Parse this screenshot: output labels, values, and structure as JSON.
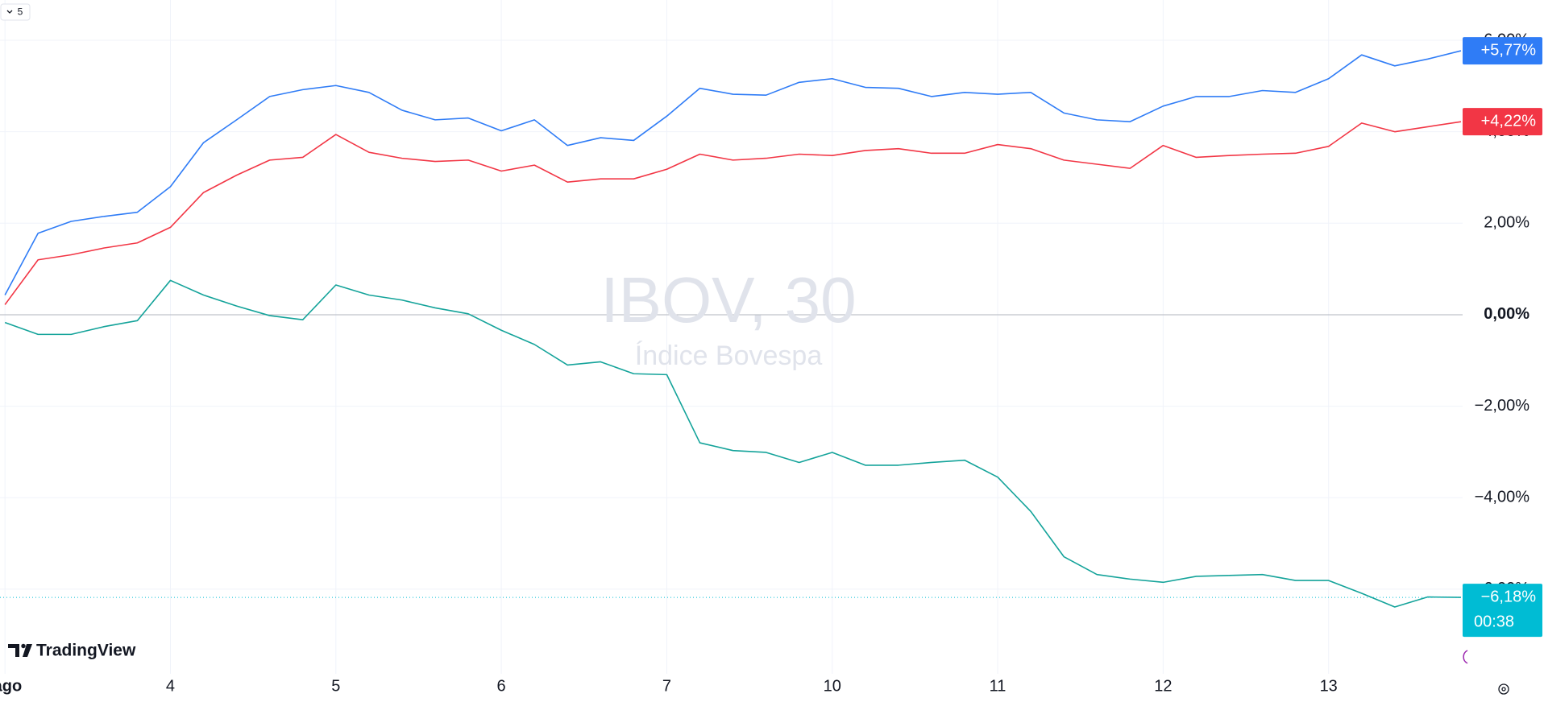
{
  "chart_data": {
    "type": "line",
    "title": "IBOV, 30",
    "subtitle": "Índice Bovespa",
    "logo": "TradingView",
    "interval_button": "5",
    "x": [
      0,
      0.2,
      0.4,
      0.6,
      0.8,
      1,
      1.2,
      1.4,
      1.6,
      1.8,
      2,
      2.2,
      2.4,
      2.6,
      2.8,
      3,
      3.2,
      3.4,
      3.6,
      3.8,
      4,
      4.2,
      4.4,
      4.6,
      4.8,
      5,
      5.2,
      5.4,
      5.6,
      5.8,
      6,
      6.2,
      6.4,
      6.6,
      6.8,
      7,
      7.2,
      7.4,
      7.6,
      7.8,
      8,
      8.2,
      8.4,
      8.6,
      8.8
    ],
    "xlim": [
      -0.03,
      8.81
    ],
    "xticks": [
      {
        "value": 0,
        "label": "ago"
      },
      {
        "value": 1,
        "label": "4"
      },
      {
        "value": 2,
        "label": "5"
      },
      {
        "value": 3,
        "label": "6"
      },
      {
        "value": 4,
        "label": "7"
      },
      {
        "value": 5,
        "label": "10"
      },
      {
        "value": 6,
        "label": "11"
      },
      {
        "value": 7,
        "label": "12"
      },
      {
        "value": 8,
        "label": "13"
      }
    ],
    "ylim": [
      -7.85,
      6.88
    ],
    "yticks": [
      {
        "value": -6,
        "label": "−6,00%"
      },
      {
        "value": -4,
        "label": "−4,00%"
      },
      {
        "value": -2,
        "label": "−2,00%"
      },
      {
        "value": 0,
        "label": "0,00%"
      },
      {
        "value": 2,
        "label": "2,00%"
      },
      {
        "value": 4,
        "label": "4,00%"
      },
      {
        "value": 6,
        "label": "6,00%"
      }
    ],
    "grid": true,
    "series": [
      {
        "color": "#2f7cf6",
        "badge": "+5,77%",
        "values": [
          0.43,
          1.78,
          2.04,
          2.15,
          2.24,
          2.8,
          3.76,
          4.26,
          4.77,
          4.92,
          5.01,
          4.86,
          4.47,
          4.26,
          4.3,
          4.02,
          4.26,
          3.7,
          3.87,
          3.81,
          4.34,
          4.95,
          4.82,
          4.8,
          5.08,
          5.16,
          4.97,
          4.95,
          4.77,
          4.86,
          4.82,
          4.86,
          4.41,
          4.26,
          4.22,
          4.56,
          4.77,
          4.77,
          4.9,
          4.86,
          5.16,
          5.68,
          5.44,
          5.59,
          5.77
        ]
      },
      {
        "color": "#f23645",
        "badge": "+4,22%",
        "values": [
          0.22,
          1.2,
          1.31,
          1.46,
          1.57,
          1.91,
          2.67,
          3.05,
          3.38,
          3.44,
          3.94,
          3.55,
          3.42,
          3.35,
          3.38,
          3.14,
          3.27,
          2.9,
          2.97,
          2.97,
          3.18,
          3.51,
          3.38,
          3.42,
          3.51,
          3.48,
          3.59,
          3.63,
          3.53,
          3.53,
          3.72,
          3.63,
          3.38,
          3.29,
          3.2,
          3.7,
          3.44,
          3.48,
          3.51,
          3.53,
          3.68,
          4.19,
          4.0,
          4.11,
          4.22
        ]
      },
      {
        "color": "#14a39a",
        "badge_color": "#00bcd4",
        "badge": "−6,18%",
        "countdown": "00:38",
        "values": [
          -0.17,
          -0.43,
          -0.43,
          -0.26,
          -0.13,
          0.75,
          0.43,
          0.19,
          -0.02,
          -0.11,
          0.65,
          0.43,
          0.32,
          0.15,
          0.02,
          -0.34,
          -0.65,
          -1.1,
          -1.03,
          -1.29,
          -1.31,
          -2.8,
          -2.97,
          -3.01,
          -3.23,
          -3.01,
          -3.29,
          -3.29,
          -3.23,
          -3.18,
          -3.55,
          -4.3,
          -5.29,
          -5.68,
          -5.78,
          -5.85,
          -5.72,
          -5.7,
          -5.68,
          -5.81,
          -5.81,
          -6.09,
          -6.39,
          -6.17,
          -6.18
        ]
      }
    ]
  }
}
